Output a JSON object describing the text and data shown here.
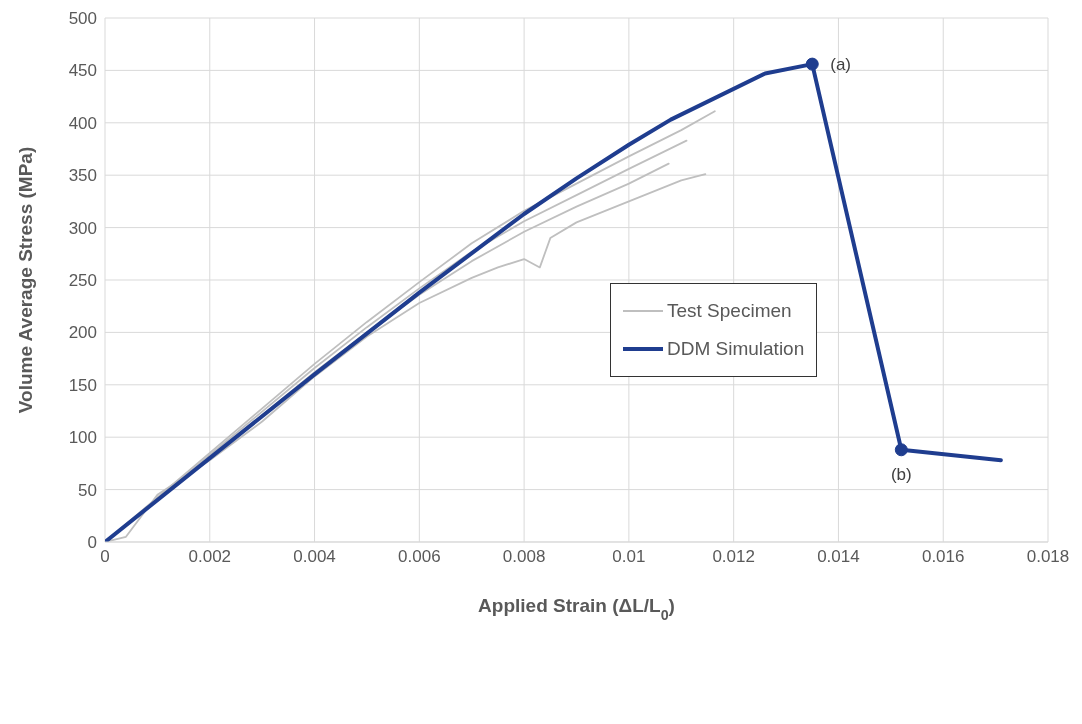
{
  "chart_data": {
    "type": "line",
    "xlabel": "Applied Strain (ΔL/L$_{0}$)",
    "ylabel": "Volume Average Stress (MPa)",
    "xlim": [
      0,
      0.018
    ],
    "xticks": [
      0,
      0.002,
      0.004,
      0.006,
      0.008,
      0.01,
      0.012,
      0.014,
      0.016,
      0.018
    ],
    "ylim": [
      0,
      500
    ],
    "yticks": [
      0,
      50,
      100,
      150,
      200,
      250,
      300,
      350,
      400,
      450,
      500
    ],
    "grid": true,
    "legend": "right",
    "line_style": "solid",
    "series": [
      {
        "name": "Test Specimen",
        "color": "#bfbfbf",
        "x": [
          0,
          0.002,
          0.004,
          0.005,
          0.006,
          0.007,
          0.008,
          0.009,
          0.01,
          0.011,
          0.01164
        ],
        "values": [
          0,
          85,
          170,
          210,
          248,
          285,
          316,
          342,
          368,
          393,
          411
        ]
      },
      {
        "color": "#bfbfbf",
        "x": [
          0,
          0.002,
          0.004,
          0.005,
          0.006,
          0.007,
          0.008,
          0.009,
          0.01,
          0.0111
        ],
        "values": [
          0,
          83,
          166,
          205,
          242,
          277,
          306,
          331,
          356,
          383
        ]
      },
      {
        "color": "#bfbfbf",
        "x": [
          0,
          0.002,
          0.004,
          0.005,
          0.006,
          0.007,
          0.008,
          0.009,
          0.01,
          0.01076
        ],
        "values": [
          0,
          80,
          162,
          200,
          236,
          268,
          296,
          320,
          342,
          361
        ]
      },
      {
        "color": "#bfbfbf",
        "x": [
          0,
          0.0004,
          0.001,
          0.002,
          0.003,
          0.004,
          0.005,
          0.006,
          0.007,
          0.0075,
          0.008,
          0.0083,
          0.0085,
          0.009,
          0.01,
          0.011,
          0.01146
        ],
        "values": [
          0,
          5,
          45,
          78,
          115,
          158,
          196,
          228,
          252,
          262,
          270,
          262,
          290,
          305,
          325,
          345,
          351
        ]
      },
      {
        "name": "DDM Simulation",
        "color": "#1f3d8f",
        "x": [
          0,
          0.002,
          0.004,
          0.006,
          0.008,
          0.009,
          0.01,
          0.0108,
          0.0126,
          0.0135,
          0.0152,
          0.0171
        ],
        "values": [
          0,
          80,
          160,
          238,
          313,
          347,
          379,
          403,
          447,
          456,
          88,
          78
        ]
      }
    ],
    "annotations": [
      {
        "text": "(a)",
        "x": 0.0135,
        "y": 456
      },
      {
        "text": "(b)",
        "x": 0.0152,
        "y": 88
      }
    ]
  }
}
